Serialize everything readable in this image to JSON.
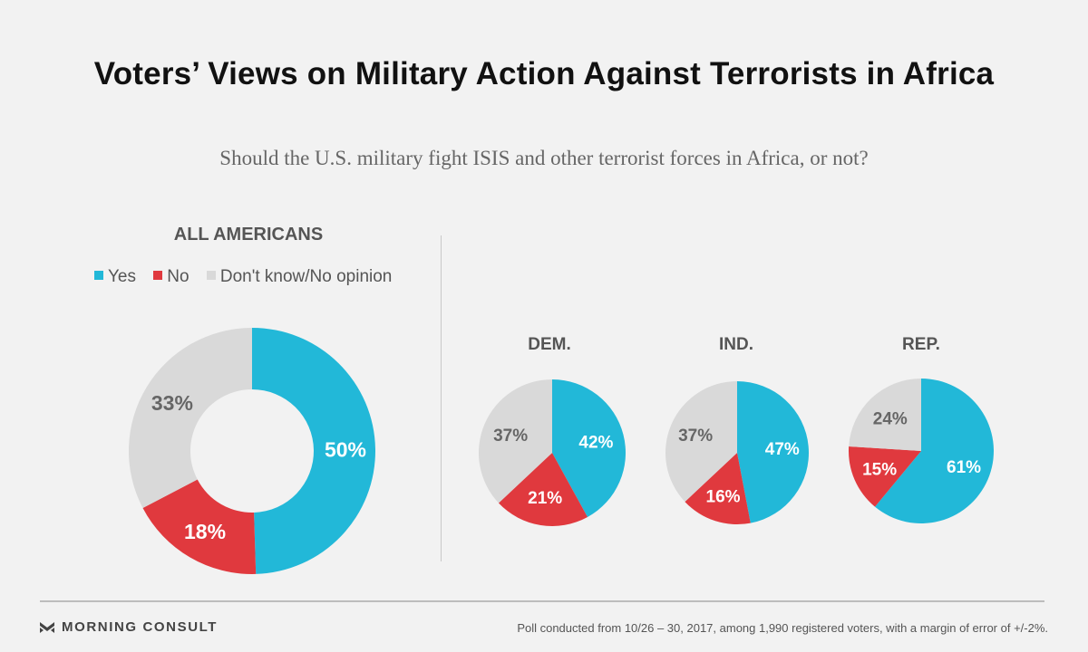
{
  "title": "Voters’ Views on Military Action Against Terrorists in Africa",
  "subtitle": "Should the U.S. military fight ISIS and other terrorist forces in Africa, or not?",
  "section_heading": "ALL AMERICANS",
  "legend": [
    {
      "label": "Yes",
      "color": "#22b8d8"
    },
    {
      "label": "No",
      "color": "#e0393e"
    },
    {
      "label": "Don't know/No opinion",
      "color": "#d9d9d9"
    }
  ],
  "colors": {
    "yes": "#22b8d8",
    "no": "#e0393e",
    "dk": "#d9d9d9"
  },
  "chart_data": [
    {
      "type": "pie",
      "variant": "donut",
      "title": "ALL AMERICANS",
      "categories": [
        "Yes",
        "No",
        "Don't know/No opinion"
      ],
      "values": [
        50,
        18,
        33
      ],
      "labels": [
        "50%",
        "18%",
        "33%"
      ]
    },
    {
      "type": "pie",
      "title": "DEM.",
      "categories": [
        "Yes",
        "No",
        "Don't know/No opinion"
      ],
      "values": [
        42,
        21,
        37
      ],
      "labels": [
        "42%",
        "21%",
        "37%"
      ]
    },
    {
      "type": "pie",
      "title": "IND.",
      "categories": [
        "Yes",
        "No",
        "Don't know/No opinion"
      ],
      "values": [
        47,
        16,
        37
      ],
      "labels": [
        "47%",
        "16%",
        "37%"
      ]
    },
    {
      "type": "pie",
      "title": "REP.",
      "categories": [
        "Yes",
        "No",
        "Don't know/No opinion"
      ],
      "values": [
        61,
        15,
        24
      ],
      "labels": [
        "61%",
        "15%",
        "24%"
      ]
    }
  ],
  "footer": {
    "brand": "MORNING CONSULT",
    "note": "Poll conducted from 10/26 – 30, 2017, among 1,990 registered voters, with a margin of error of +/-2%."
  }
}
